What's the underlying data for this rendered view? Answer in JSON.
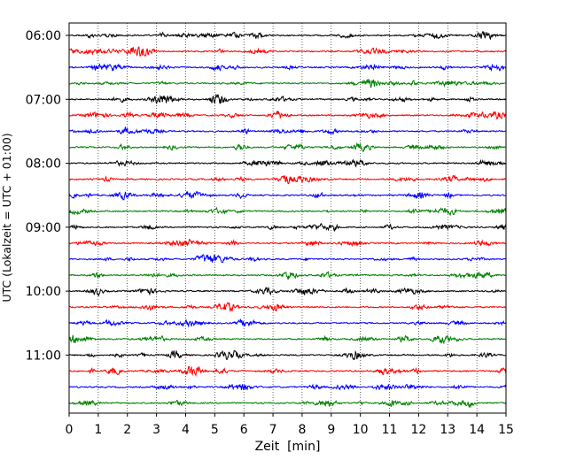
{
  "chart_data": {
    "type": "line",
    "title": "",
    "xlabel": "Zeit  [min]",
    "ylabel": "UTC (Lokalzeit = UTC + 01:00)",
    "xlim": [
      0,
      15
    ],
    "x_ticks": [
      "0",
      "1",
      "2",
      "3",
      "4",
      "5",
      "6",
      "7",
      "8",
      "9",
      "10",
      "11",
      "12",
      "13",
      "14",
      "15"
    ],
    "y_ticks": [
      "06:00",
      "07:00",
      "08:00",
      "09:00",
      "10:00",
      "11:00"
    ],
    "grid": "vertical dotted at each minute",
    "trace_interval_minutes": 15,
    "start_time_utc": "06:00",
    "trace_colors": [
      "#000000",
      "#ff0000",
      "#0000ff",
      "#008000"
    ],
    "series": [
      {
        "start": "06:00"
      },
      {
        "start": "06:15"
      },
      {
        "start": "06:30"
      },
      {
        "start": "06:45"
      },
      {
        "start": "07:00"
      },
      {
        "start": "07:15"
      },
      {
        "start": "07:30"
      },
      {
        "start": "07:45"
      },
      {
        "start": "08:00"
      },
      {
        "start": "08:15"
      },
      {
        "start": "08:30"
      },
      {
        "start": "08:45"
      },
      {
        "start": "09:00"
      },
      {
        "start": "09:15"
      },
      {
        "start": "09:30"
      },
      {
        "start": "09:45"
      },
      {
        "start": "10:00"
      },
      {
        "start": "10:15"
      },
      {
        "start": "10:30"
      },
      {
        "start": "10:45"
      },
      {
        "start": "11:00"
      },
      {
        "start": "11:15"
      },
      {
        "start": "11:30"
      },
      {
        "start": "11:45"
      }
    ]
  }
}
